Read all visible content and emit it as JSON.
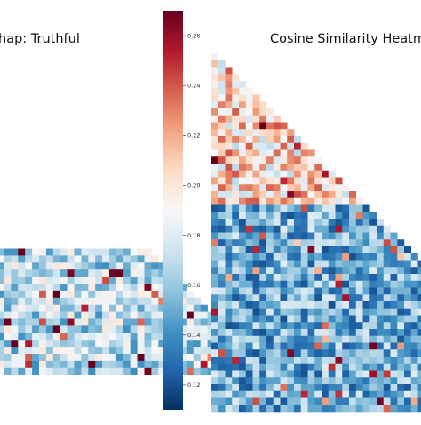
{
  "chart_data": [
    {
      "type": "heatmap",
      "title": "hap: Truthful",
      "shape": "lower-triangle",
      "visible": "partial, cropped at left edge"
    },
    {
      "type": "heatmap",
      "title": "Cosine Similarity Heatm",
      "shape": "lower-triangle",
      "visible": "partial, cropped at right edge"
    }
  ],
  "colorbar": {
    "colormap": "RdBu_r",
    "range": [
      0.11,
      0.27
    ],
    "ticks": [
      "0.26",
      "0.24",
      "0.22",
      "0.20",
      "0.18",
      "0.16",
      "0.14",
      "0.12"
    ],
    "tick_values": [
      0.26,
      0.24,
      0.22,
      0.2,
      0.18,
      0.16,
      0.14,
      0.12
    ]
  },
  "colors": {
    "low": "#053061",
    "mid": "#f7f7f7",
    "high": "#67001f"
  }
}
